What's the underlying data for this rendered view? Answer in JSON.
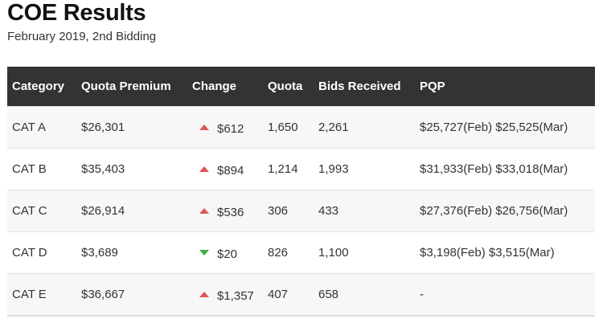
{
  "title": "COE Results",
  "subtitle": "February 2019, 2nd Bidding",
  "colors": {
    "header_bg": "#333333",
    "up": "#e05454",
    "down": "#3cb043"
  },
  "table": {
    "headers": [
      "Category",
      "Quota Premium",
      "Change",
      "Quota",
      "Bids Received",
      "PQP"
    ],
    "rows": [
      {
        "category": "CAT A",
        "premium": "$26,301",
        "direction": "up",
        "change": "$612",
        "quota": "1,650",
        "bids": "2,261",
        "pqp": "$25,727(Feb) $25,525(Mar)"
      },
      {
        "category": "CAT B",
        "premium": "$35,403",
        "direction": "up",
        "change": "$894",
        "quota": "1,214",
        "bids": "1,993",
        "pqp": "$31,933(Feb) $33,018(Mar)"
      },
      {
        "category": "CAT C",
        "premium": "$26,914",
        "direction": "up",
        "change": "$536",
        "quota": "306",
        "bids": "433",
        "pqp": "$27,376(Feb) $26,756(Mar)"
      },
      {
        "category": "CAT D",
        "premium": "$3,689",
        "direction": "down",
        "change": "$20",
        "quota": "826",
        "bids": "1,100",
        "pqp": "$3,198(Feb) $3,515(Mar)"
      },
      {
        "category": "CAT E",
        "premium": "$36,667",
        "direction": "up",
        "change": "$1,357",
        "quota": "407",
        "bids": "658",
        "pqp": "-"
      }
    ]
  }
}
